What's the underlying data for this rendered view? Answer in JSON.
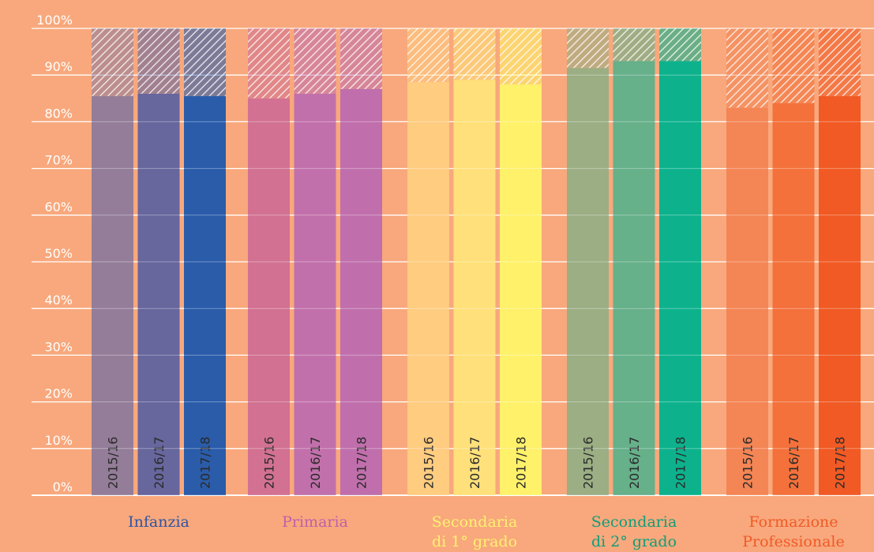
{
  "chart_data": {
    "type": "bar",
    "stacked_to": 100,
    "ylim": [
      0,
      100
    ],
    "yticks": [
      "0%",
      "10%",
      "20%",
      "30%",
      "40%",
      "50%",
      "60%",
      "70%",
      "80%",
      "90%",
      "100%"
    ],
    "series_labels": [
      "2015/16",
      "2016/17",
      "2017/18"
    ],
    "grid": true,
    "groups": [
      {
        "label_lines": [
          "Infanzia"
        ],
        "label_color": "#2f55a4",
        "colors": [
          "#947d99",
          "#67669d",
          "#2a5caa"
        ],
        "values": [
          85.5,
          86.0,
          85.5
        ]
      },
      {
        "label_lines": [
          "Primaria"
        ],
        "label_color": "#c060aa",
        "colors": [
          "#d27191",
          "#c270ab",
          "#c06fac"
        ],
        "values": [
          85.0,
          86.0,
          87.0
        ]
      },
      {
        "label_lines": [
          "Secondaria",
          "di 1° grado"
        ],
        "label_color": "#fff170",
        "colors": [
          "#ffcc80",
          "#ffe07a",
          "#fff16a"
        ],
        "values": [
          88.5,
          89.0,
          88.0
        ]
      },
      {
        "label_lines": [
          "Secondaria",
          "di 2° grado"
        ],
        "label_color": "#0f9e78",
        "colors": [
          "#9bae84",
          "#66b08a",
          "#0db28d"
        ],
        "values": [
          91.5,
          93.0,
          93.0
        ]
      },
      {
        "label_lines": [
          "Formazione",
          "Professionale"
        ],
        "label_color": "#f05a28",
        "colors": [
          "#f48555",
          "#f4713b",
          "#f15a24"
        ],
        "values": [
          83.0,
          84.0,
          85.5
        ]
      }
    ]
  }
}
